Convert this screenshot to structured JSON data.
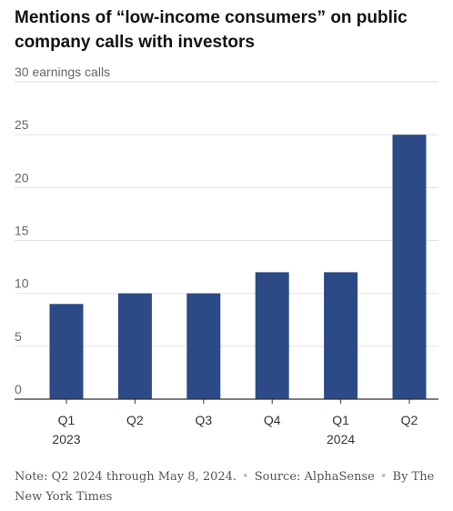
{
  "chart_data": {
    "type": "bar",
    "title": "Mentions of “low-income consumers” on public company calls with investors",
    "unit_label": "30 earnings calls",
    "categories": [
      "Q1",
      "Q2",
      "Q3",
      "Q4",
      "Q1",
      "Q2"
    ],
    "year_labels": [
      "2023",
      "",
      "",
      "",
      "2024",
      ""
    ],
    "values": [
      9,
      10,
      10,
      12,
      12,
      25
    ],
    "yticks": [
      0,
      5,
      10,
      15,
      20,
      25
    ],
    "ylim": [
      0,
      30
    ],
    "grid": true,
    "bar_color": "#2b4a86"
  },
  "footer": {
    "note": "Note: Q2 2024 through May 8, 2024.",
    "separator": "•",
    "source": "Source: AlphaSense",
    "byline": "By The New York Times"
  }
}
